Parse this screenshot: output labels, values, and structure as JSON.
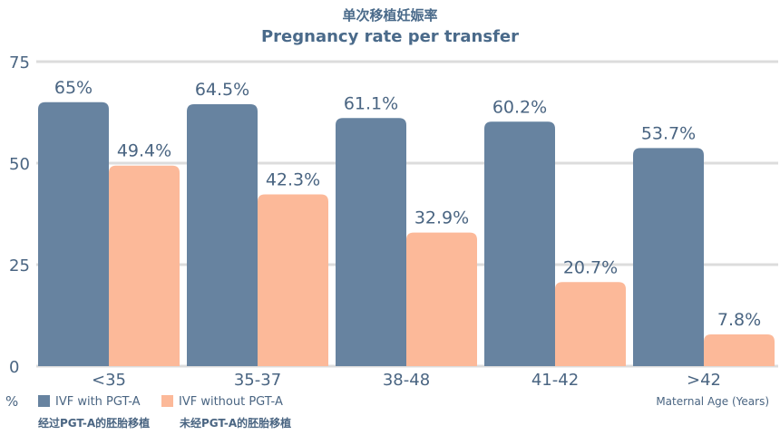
{
  "chart_data": {
    "type": "bar",
    "title": "单次移植妊娠率",
    "subtitle": "Pregnancy rate per transfer",
    "categories": [
      "<35",
      "35-37",
      "38-48",
      "41-42",
      ">42"
    ],
    "series": [
      {
        "name": "IVF with PGT-A",
        "name_cn": "经过PGT-A的胚胎移植",
        "values": [
          65,
          64.5,
          61.1,
          60.2,
          53.7
        ],
        "labels": [
          "65%",
          "64.5%",
          "61.1%",
          "60.2%",
          "53.7%"
        ],
        "color": "#6783a0"
      },
      {
        "name": "IVF without PGT-A",
        "name_cn": "未经PGT-A的胚胎移植",
        "values": [
          49.4,
          42.3,
          32.9,
          20.7,
          7.8
        ],
        "labels": [
          "49.4%",
          "42.3%",
          "32.9%",
          "20.7%",
          "7.8%"
        ],
        "color": "#fcb999"
      }
    ],
    "ylabel": "%",
    "xlabel": "Maternal Age (Years)",
    "ylim": [
      0,
      75
    ],
    "yticks": [
      0,
      25,
      50,
      75
    ],
    "grid": true,
    "legend_position": "bottom-left"
  }
}
